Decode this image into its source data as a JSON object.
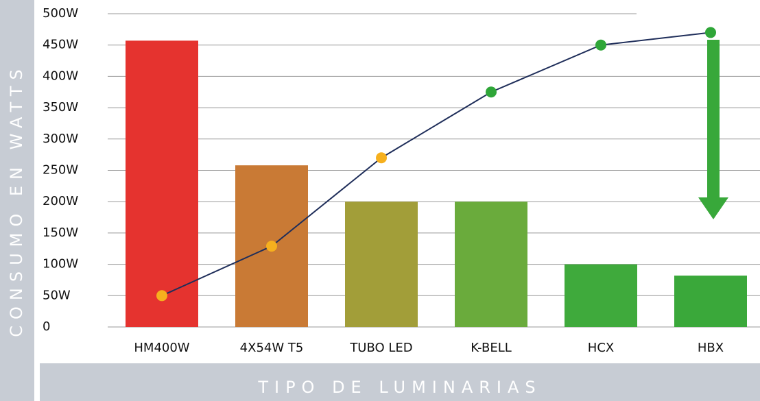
{
  "chart_data": {
    "type": "bar",
    "categories": [
      "HM400W",
      "4X54W T5",
      "TUBO LED",
      "K-BELL",
      "HCX",
      "HBX"
    ],
    "values": [
      457,
      258,
      200,
      200,
      100,
      82
    ],
    "colors": [
      "#e5332f",
      "#c97a35",
      "#a29e39",
      "#6aab3c",
      "#3faa3c",
      "#3aa83a"
    ],
    "line_values": [
      50,
      129,
      270,
      375,
      450,
      470
    ],
    "line_colors": [
      "#f6b01e",
      "#f6b01e",
      "#f6b01e",
      "#2fa638",
      "#2fa638",
      "#2fa638"
    ],
    "line_color": "#1f2e5a",
    "ylim": [
      0,
      500
    ],
    "yticks": [
      0,
      {
        "value": 50,
        "label": "50W"
      },
      {
        "value": 100,
        "label": "100W"
      },
      {
        "value": 150,
        "label": "150W"
      },
      {
        "value": 200,
        "label": "200W"
      },
      {
        "value": 250,
        "label": "250W"
      },
      {
        "value": 300,
        "label": "300W"
      },
      {
        "value": 350,
        "label": "350W"
      },
      {
        "value": 400,
        "label": "400W"
      },
      {
        "value": 450,
        "label": "450W"
      },
      {
        "value": {
          "value": 500,
          "label": "500W"
        }
      }
    ],
    "ylabel": "CONSUMO EN WATTS",
    "xlabel": "TIPO DE LUMINARIAS",
    "grid": true
  }
}
